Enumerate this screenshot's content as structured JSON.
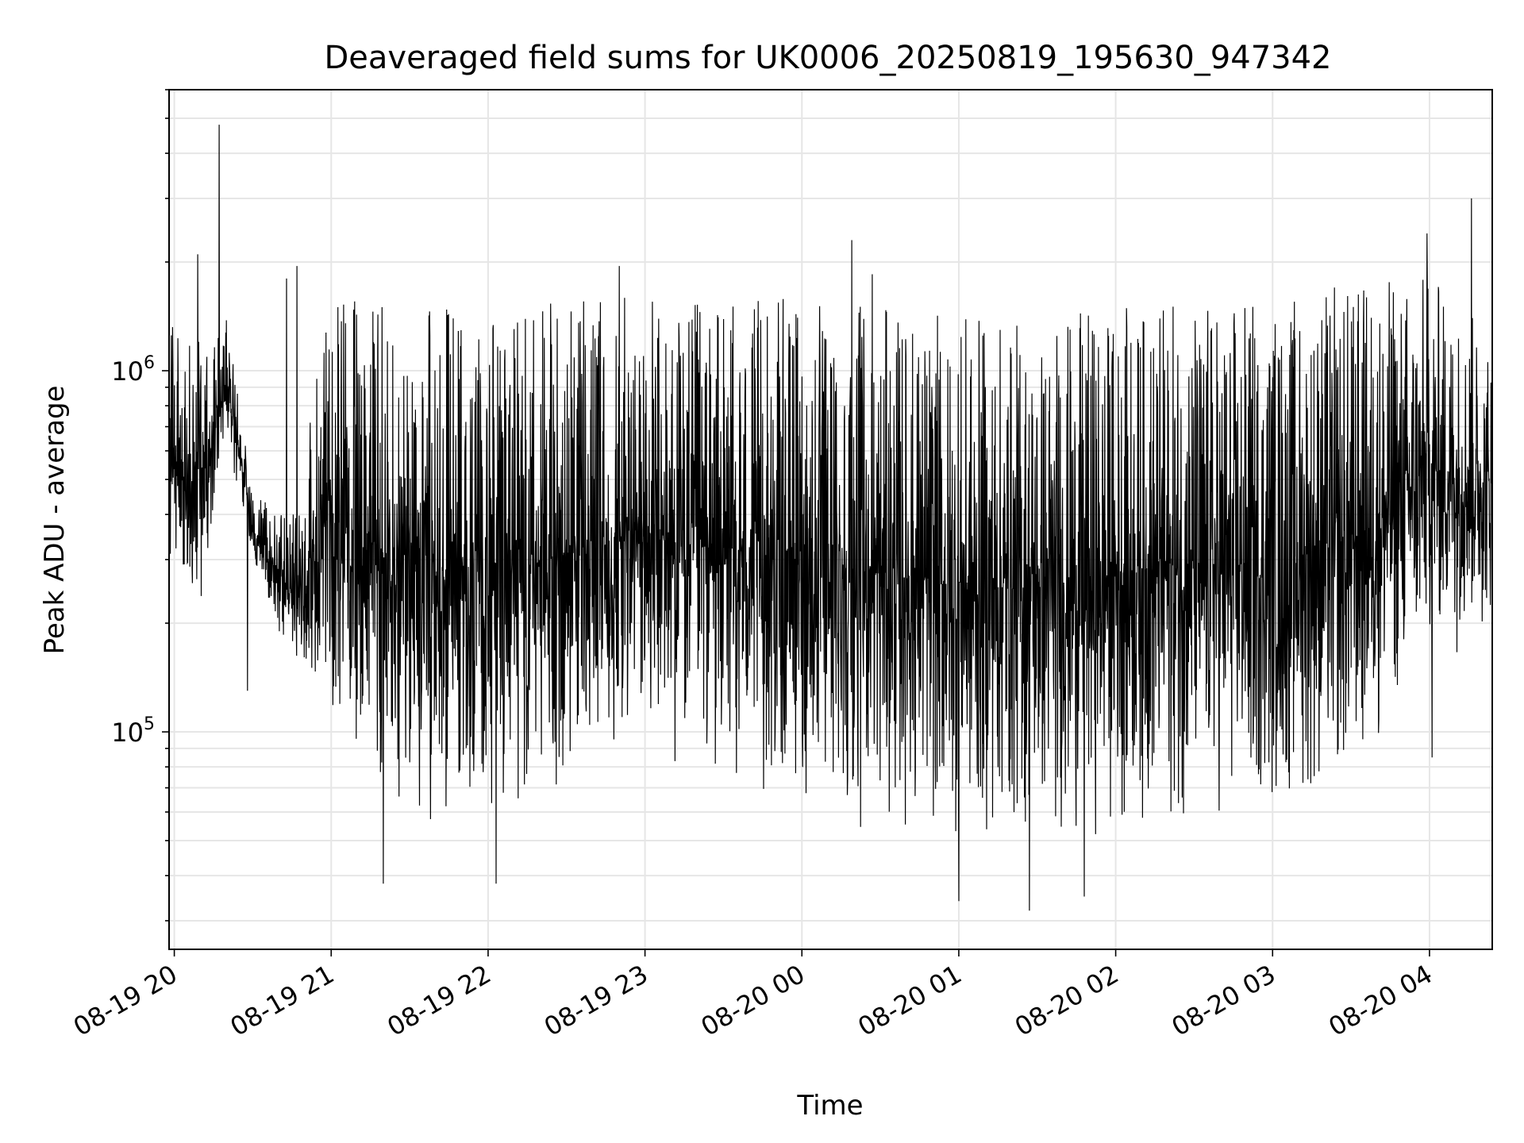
{
  "chart_data": {
    "type": "line",
    "title": "Deaveraged field sums for UK0006_20250819_195630_947342",
    "xlabel": "Time",
    "ylabel": "Peak ADU - average",
    "yscale": "log",
    "grid": true,
    "legend": "none",
    "line_color": "#000000",
    "xlim": [
      "2025-08-19 19:58",
      "2025-08-20 04:24"
    ],
    "ylim": [
      25000,
      6000000
    ],
    "x_ticks": [
      "08-19 20",
      "08-19 21",
      "08-19 22",
      "08-19 23",
      "08-20 00",
      "08-20 01",
      "08-20 02",
      "08-20 03",
      "08-20 04"
    ],
    "y_ticks": [
      {
        "value": 100000,
        "base": "10",
        "exp": "5"
      },
      {
        "value": 1000000,
        "base": "10",
        "exp": "6"
      }
    ],
    "envelope": {
      "time": [
        "2025-08-19 19:58",
        "2025-08-19 20:10",
        "2025-08-19 20:20",
        "2025-08-19 20:30",
        "2025-08-19 20:45",
        "2025-08-19 21:00",
        "2025-08-19 21:30",
        "2025-08-19 22:00",
        "2025-08-19 22:30",
        "2025-08-19 23:00",
        "2025-08-19 23:30",
        "2025-08-20 00:00",
        "2025-08-20 00:30",
        "2025-08-20 01:00",
        "2025-08-20 01:30",
        "2025-08-20 02:00",
        "2025-08-20 02:30",
        "2025-08-20 03:00",
        "2025-08-20 03:30",
        "2025-08-20 04:00",
        "2025-08-20 04:24"
      ],
      "low": [
        250000,
        220000,
        600000,
        300000,
        150000,
        90000,
        52000,
        48000,
        60000,
        75000,
        65000,
        55000,
        50000,
        45000,
        45000,
        50000,
        50000,
        55000,
        60000,
        150000,
        180000
      ],
      "high": [
        1400000,
        1200000,
        1400000,
        450000,
        400000,
        1600000,
        1550000,
        1500000,
        1600000,
        1600000,
        1550000,
        1600000,
        1500000,
        1400000,
        1400000,
        1500000,
        1600000,
        1600000,
        1800000,
        1900000,
        1300000
      ]
    },
    "spikes": [
      {
        "time": "2025-08-19 20:17",
        "value": 4800000
      },
      {
        "time": "2025-08-19 20:09",
        "value": 2100000
      },
      {
        "time": "2025-08-19 20:28",
        "value": 130000
      },
      {
        "time": "2025-08-19 20:43",
        "value": 1800000
      },
      {
        "time": "2025-08-19 20:47",
        "value": 1950000
      },
      {
        "time": "2025-08-19 21:20",
        "value": 38000
      },
      {
        "time": "2025-08-19 22:03",
        "value": 38000
      },
      {
        "time": "2025-08-19 22:50",
        "value": 1950000
      },
      {
        "time": "2025-08-20 00:19",
        "value": 2300000
      },
      {
        "time": "2025-08-20 00:27",
        "value": 1850000
      },
      {
        "time": "2025-08-20 01:00",
        "value": 34000
      },
      {
        "time": "2025-08-20 01:27",
        "value": 32000
      },
      {
        "time": "2025-08-20 01:48",
        "value": 35000
      },
      {
        "time": "2025-08-20 03:59",
        "value": 2400000
      },
      {
        "time": "2025-08-20 04:01",
        "value": 85000
      },
      {
        "time": "2025-08-20 04:16",
        "value": 3000000
      }
    ]
  }
}
